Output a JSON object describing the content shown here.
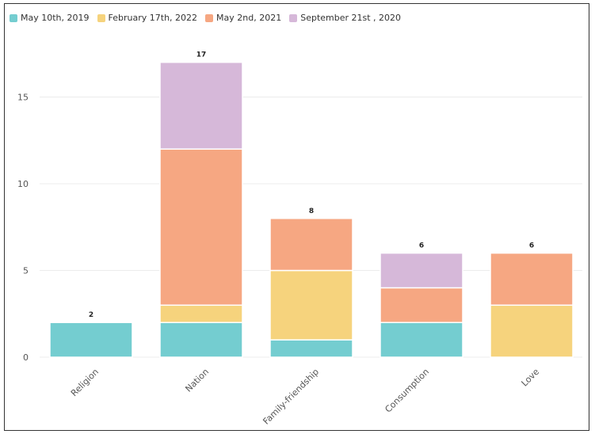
{
  "chart_data": {
    "type": "bar",
    "stacked": true,
    "categories": [
      "Religion",
      "Nation",
      "Family-friendship",
      "Consumption",
      "Love"
    ],
    "series": [
      {
        "name": "May 10th, 2019",
        "color": "#74cdd0",
        "values": [
          2,
          2,
          1,
          2,
          0
        ]
      },
      {
        "name": "February 17th, 2022",
        "color": "#f6d37d",
        "values": [
          0,
          1,
          4,
          0,
          3
        ]
      },
      {
        "name": "May 2nd, 2021",
        "color": "#f6a782",
        "values": [
          0,
          9,
          3,
          2,
          3
        ]
      },
      {
        "name": "September 21st , 2020",
        "color": "#d6b8d9",
        "values": [
          0,
          5,
          0,
          2,
          0
        ]
      }
    ],
    "totals": [
      "2",
      "17",
      "8",
      "6",
      "6"
    ],
    "yticks": [
      "0",
      "5",
      "10",
      "15"
    ],
    "ylim": [
      0,
      18
    ],
    "grid": true,
    "legend": "top-left",
    "title": "",
    "xlabel": "",
    "ylabel": ""
  }
}
